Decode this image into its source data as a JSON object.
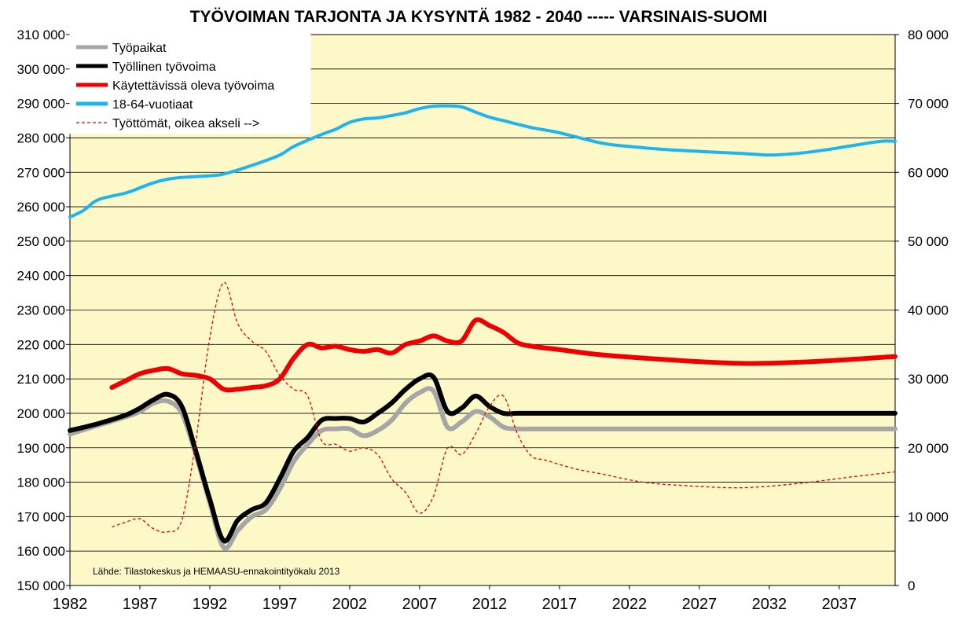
{
  "chart_data": {
    "type": "line",
    "title": "TYÖVOIMAN TARJONTA JA KYSYNTÄ 1982 - 2040 ----- VARSINAIS-SUOMI",
    "source_note": "Lähde: Tilastokeskus ja HEMAASU-ennakointityökalu 2013",
    "xlim": [
      1982,
      2041
    ],
    "x_ticks": [
      "1982",
      "1987",
      "1992",
      "1997",
      "2002",
      "2007",
      "2012",
      "2017",
      "2022",
      "2027",
      "2032",
      "2037"
    ],
    "ylim": [
      150000,
      310000
    ],
    "y_ticks": [
      "150 000",
      "160 000",
      "170 000",
      "180 000",
      "190 000",
      "200 000",
      "210 000",
      "220 000",
      "230 000",
      "240 000",
      "250 000",
      "260 000",
      "270 000",
      "280 000",
      "290 000",
      "300 000",
      "310 000"
    ],
    "y2lim": [
      0,
      80000
    ],
    "y2_ticks": [
      "0",
      "10 000",
      "20 000",
      "30 000",
      "40 000",
      "50 000",
      "60 000",
      "70 000",
      "80 000"
    ],
    "plot_background": "#fcf8c8",
    "legend_position": "top-left",
    "series": [
      {
        "name": "Työpaikat",
        "axis": "left",
        "color": "#a6a6a6",
        "style": "solid",
        "width": 6,
        "points": [
          [
            1982,
            194000
          ],
          [
            1984,
            196500
          ],
          [
            1986,
            199000
          ],
          [
            1987,
            200500
          ],
          [
            1988,
            203000
          ],
          [
            1989,
            203500
          ],
          [
            1990,
            200000
          ],
          [
            1991,
            188000
          ],
          [
            1992,
            174000
          ],
          [
            1993,
            161000
          ],
          [
            1994,
            166000
          ],
          [
            1995,
            170000
          ],
          [
            1996,
            172000
          ],
          [
            1997,
            178000
          ],
          [
            1998,
            186000
          ],
          [
            1999,
            191000
          ],
          [
            2000,
            195000
          ],
          [
            2001,
            195500
          ],
          [
            2002,
            195500
          ],
          [
            2003,
            193500
          ],
          [
            2004,
            195000
          ],
          [
            2005,
            198000
          ],
          [
            2006,
            203000
          ],
          [
            2007,
            206000
          ],
          [
            2008,
            206500
          ],
          [
            2009,
            196000
          ],
          [
            2010,
            197500
          ],
          [
            2011,
            200500
          ],
          [
            2012,
            199000
          ],
          [
            2013,
            196000
          ],
          [
            2014,
            195500
          ],
          [
            2016,
            195500
          ],
          [
            2020,
            195500
          ],
          [
            2025,
            195500
          ],
          [
            2030,
            195500
          ],
          [
            2035,
            195500
          ],
          [
            2041,
            195500
          ]
        ]
      },
      {
        "name": "Työllinen työvoima",
        "axis": "left",
        "color": "#000000",
        "style": "solid",
        "width": 6,
        "points": [
          [
            1982,
            195000
          ],
          [
            1984,
            197000
          ],
          [
            1986,
            199500
          ],
          [
            1987,
            201500
          ],
          [
            1988,
            204000
          ],
          [
            1989,
            205500
          ],
          [
            1990,
            202000
          ],
          [
            1991,
            189000
          ],
          [
            1992,
            175000
          ],
          [
            1993,
            163000
          ],
          [
            1994,
            169000
          ],
          [
            1995,
            172000
          ],
          [
            1996,
            174000
          ],
          [
            1997,
            181000
          ],
          [
            1998,
            189000
          ],
          [
            1999,
            193000
          ],
          [
            2000,
            198000
          ],
          [
            2001,
            198500
          ],
          [
            2002,
            198500
          ],
          [
            2003,
            197500
          ],
          [
            2004,
            200000
          ],
          [
            2005,
            203000
          ],
          [
            2006,
            207000
          ],
          [
            2007,
            210000
          ],
          [
            2008,
            210500
          ],
          [
            2009,
            200500
          ],
          [
            2010,
            201500
          ],
          [
            2011,
            205000
          ],
          [
            2012,
            202000
          ],
          [
            2013,
            200000
          ],
          [
            2014,
            200000
          ],
          [
            2016,
            200000
          ],
          [
            2020,
            200000
          ],
          [
            2025,
            200000
          ],
          [
            2030,
            200000
          ],
          [
            2035,
            200000
          ],
          [
            2041,
            200000
          ]
        ]
      },
      {
        "name": "Käytettävissä oleva työvoima",
        "axis": "left",
        "color": "#ee0000",
        "style": "solid",
        "width": 6,
        "points": [
          [
            1985,
            207500
          ],
          [
            1986,
            209500
          ],
          [
            1987,
            211500
          ],
          [
            1988,
            212500
          ],
          [
            1989,
            213000
          ],
          [
            1990,
            211500
          ],
          [
            1991,
            211000
          ],
          [
            1992,
            210000
          ],
          [
            1993,
            207000
          ],
          [
            1994,
            207000
          ],
          [
            1995,
            207500
          ],
          [
            1996,
            208000
          ],
          [
            1997,
            210000
          ],
          [
            1998,
            216000
          ],
          [
            1999,
            220000
          ],
          [
            2000,
            219000
          ],
          [
            2001,
            219500
          ],
          [
            2002,
            218500
          ],
          [
            2003,
            218000
          ],
          [
            2004,
            218500
          ],
          [
            2005,
            217500
          ],
          [
            2006,
            220000
          ],
          [
            2007,
            221000
          ],
          [
            2008,
            222500
          ],
          [
            2009,
            221000
          ],
          [
            2010,
            221000
          ],
          [
            2011,
            227000
          ],
          [
            2012,
            225500
          ],
          [
            2013,
            223500
          ],
          [
            2014,
            220500
          ],
          [
            2015,
            219500
          ],
          [
            2017,
            218500
          ],
          [
            2020,
            217000
          ],
          [
            2025,
            215500
          ],
          [
            2030,
            214500
          ],
          [
            2035,
            215000
          ],
          [
            2041,
            216500
          ]
        ]
      },
      {
        "name": "18-64-vuotiaat",
        "axis": "left",
        "color": "#1fb4ec",
        "style": "solid",
        "width": 4,
        "points": [
          [
            1982,
            257000
          ],
          [
            1983,
            259000
          ],
          [
            1984,
            262000
          ],
          [
            1986,
            264000
          ],
          [
            1987,
            265500
          ],
          [
            1988,
            267000
          ],
          [
            1989,
            268000
          ],
          [
            1990,
            268500
          ],
          [
            1992,
            269000
          ],
          [
            1993,
            269500
          ],
          [
            1995,
            272000
          ],
          [
            1997,
            275000
          ],
          [
            1998,
            277500
          ],
          [
            2000,
            281000
          ],
          [
            2001,
            282500
          ],
          [
            2002,
            284500
          ],
          [
            2003,
            285500
          ],
          [
            2004,
            285800
          ],
          [
            2005,
            286500
          ],
          [
            2006,
            287300
          ],
          [
            2007,
            288500
          ],
          [
            2008,
            289200
          ],
          [
            2009,
            289300
          ],
          [
            2010,
            289000
          ],
          [
            2011,
            287500
          ],
          [
            2012,
            286000
          ],
          [
            2013,
            285000
          ],
          [
            2015,
            283000
          ],
          [
            2017,
            281500
          ],
          [
            2020,
            278500
          ],
          [
            2022,
            277500
          ],
          [
            2025,
            276500
          ],
          [
            2030,
            275500
          ],
          [
            2032,
            275000
          ],
          [
            2034,
            275500
          ],
          [
            2036,
            276500
          ],
          [
            2038,
            277800
          ],
          [
            2040,
            279000
          ],
          [
            2041,
            279000
          ]
        ]
      },
      {
        "name": "Työttömät, oikea akseli -->",
        "axis": "right",
        "color": "#ee0000",
        "style": "dashed",
        "width": 1.3,
        "points": [
          [
            1985,
            8500
          ],
          [
            1986,
            9200
          ],
          [
            1987,
            9700
          ],
          [
            1988,
            8200
          ],
          [
            1989,
            7800
          ],
          [
            1990,
            9500
          ],
          [
            1991,
            21000
          ],
          [
            1992,
            36000
          ],
          [
            1993,
            44000
          ],
          [
            1994,
            38000
          ],
          [
            1995,
            35500
          ],
          [
            1996,
            34000
          ],
          [
            1997,
            30500
          ],
          [
            1998,
            28500
          ],
          [
            1999,
            27500
          ],
          [
            2000,
            21000
          ],
          [
            2001,
            20500
          ],
          [
            2002,
            19500
          ],
          [
            2003,
            20000
          ],
          [
            2004,
            19000
          ],
          [
            2005,
            15500
          ],
          [
            2006,
            13500
          ],
          [
            2007,
            10500
          ],
          [
            2008,
            13000
          ],
          [
            2009,
            20000
          ],
          [
            2010,
            19000
          ],
          [
            2011,
            22000
          ],
          [
            2012,
            26000
          ],
          [
            2013,
            27500
          ],
          [
            2014,
            22000
          ],
          [
            2015,
            18800
          ],
          [
            2016,
            18200
          ],
          [
            2018,
            17000
          ],
          [
            2020,
            16200
          ],
          [
            2023,
            15000
          ],
          [
            2026,
            14500
          ],
          [
            2030,
            14200
          ],
          [
            2034,
            14800
          ],
          [
            2038,
            15800
          ],
          [
            2041,
            16500
          ]
        ]
      }
    ]
  }
}
